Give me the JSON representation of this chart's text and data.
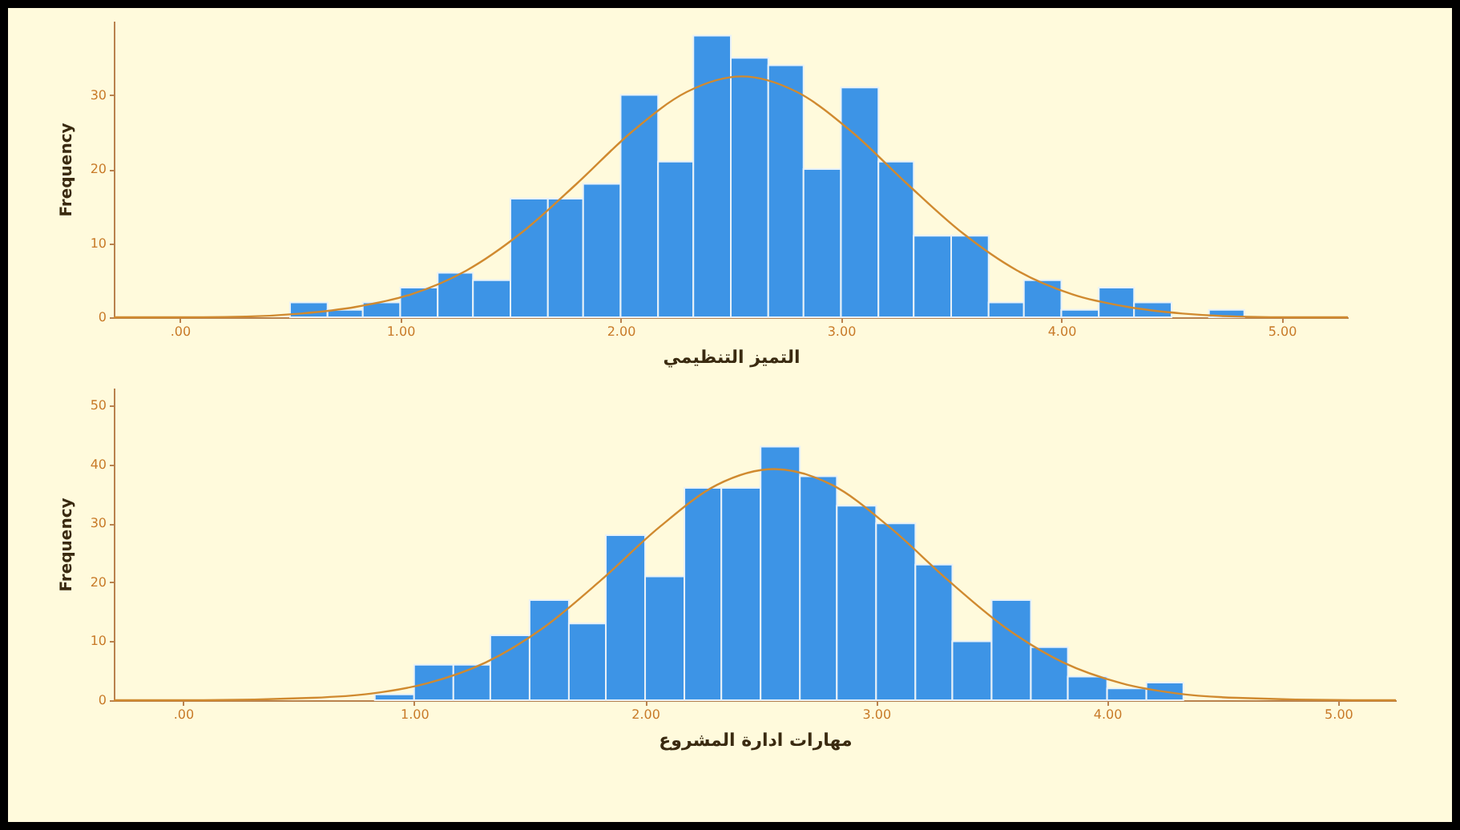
{
  "chart_data": [
    {
      "type": "histogram",
      "xlabel": "التميز التنظيمي",
      "ylabel": "Frequency",
      "grid": false,
      "xlim": [
        -0.3,
        5.3
      ],
      "xticks": [
        {
          "value": 0,
          "label": ".00"
        },
        {
          "value": 1,
          "label": "1.00"
        },
        {
          "value": 2,
          "label": "2.00"
        },
        {
          "value": 3,
          "label": "3.00"
        },
        {
          "value": 4,
          "label": "4.00"
        },
        {
          "value": 5,
          "label": "5.00"
        }
      ],
      "ylim": [
        0,
        40
      ],
      "yticks": [
        0,
        10,
        20,
        30
      ],
      "series": [
        {
          "type": "histogram",
          "color": "#3d94e6",
          "bins": [
            0.5,
            0.67,
            0.83,
            1,
            1.17,
            1.33,
            1.5,
            1.67,
            1.83,
            2,
            2.17,
            2.33,
            2.5,
            2.67,
            2.83,
            3,
            3.17,
            3.33,
            3.5,
            3.67,
            3.83,
            4,
            4.17,
            4.33,
            4.5,
            4.67,
            4.83
          ],
          "values": [
            2,
            1,
            2,
            4,
            6,
            5,
            16,
            16,
            18,
            30,
            21,
            38,
            35,
            34,
            20,
            31,
            21,
            11,
            11,
            2,
            5,
            1,
            4,
            2,
            0,
            1
          ]
        },
        {
          "type": "line",
          "color": "#d08a30",
          "x": [
            -0.3,
            0,
            0.3,
            0.55,
            0.8,
            1.05,
            1.3,
            1.55,
            1.8,
            2.05,
            2.3,
            2.55,
            2.8,
            3.05,
            3.3,
            3.55,
            3.8,
            4.05,
            4.3,
            4.55,
            4.8,
            5.1,
            5.3
          ],
          "values": [
            0,
            0,
            0.1,
            0.5,
            1.4,
            3.1,
            6.3,
            11.4,
            18,
            25,
            30.4,
            32.5,
            30.4,
            25,
            18,
            11.4,
            6.3,
            3.1,
            1.4,
            0.5,
            0.1,
            0,
            0
          ]
        }
      ]
    },
    {
      "type": "histogram",
      "xlabel": "مهارات ادارة المشروع",
      "ylabel": "Frequency",
      "grid": false,
      "xlim": [
        -0.3,
        5.25
      ],
      "xticks": [
        {
          "value": 0,
          "label": ".00"
        },
        {
          "value": 1,
          "label": "1.00"
        },
        {
          "value": 2,
          "label": "2.00"
        },
        {
          "value": 3,
          "label": "3.00"
        },
        {
          "value": 4,
          "label": "4.00"
        },
        {
          "value": 5,
          "label": "5.00"
        }
      ],
      "ylim": [
        0,
        53
      ],
      "yticks": [
        0,
        10,
        20,
        30,
        40,
        50
      ],
      "series": [
        {
          "type": "histogram",
          "color": "#3d94e6",
          "bins": [
            0.83,
            1,
            1.17,
            1.33,
            1.5,
            1.67,
            1.83,
            2,
            2.17,
            2.33,
            2.5,
            2.67,
            2.83,
            3,
            3.17,
            3.33,
            3.5,
            3.67,
            3.83,
            4,
            4.17,
            4.33
          ],
          "values": [
            1,
            6,
            6,
            11,
            17,
            13,
            28,
            21,
            36,
            36,
            43,
            38,
            33,
            30,
            23,
            10,
            17,
            9,
            4,
            2,
            3
          ]
        },
        {
          "type": "line",
          "color": "#d08a30",
          "x": [
            -0.3,
            0.06,
            0.56,
            0.81,
            1.06,
            1.31,
            1.56,
            1.81,
            2.06,
            2.31,
            2.56,
            2.81,
            3.06,
            3.31,
            3.56,
            3.81,
            4.06,
            4.31,
            4.56,
            5.06,
            5.25
          ],
          "values": [
            0,
            0,
            0.4,
            1.1,
            2.9,
            6.4,
            12.3,
            20.4,
            29.3,
            36.5,
            39.2,
            36.5,
            29.3,
            20.4,
            12.3,
            6.4,
            2.9,
            1.1,
            0.4,
            0,
            0
          ]
        }
      ]
    }
  ]
}
